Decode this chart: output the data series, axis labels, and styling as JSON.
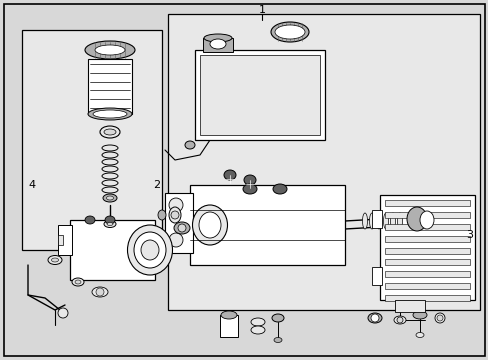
{
  "bg_color": "#d8d8d8",
  "white": "#ffffff",
  "black": "#000000",
  "gray_light": "#e8e8e8",
  "gray_mid": "#b0b0b0",
  "gray_dark": "#606060",
  "figsize": [
    4.89,
    3.6
  ],
  "dpi": 100
}
